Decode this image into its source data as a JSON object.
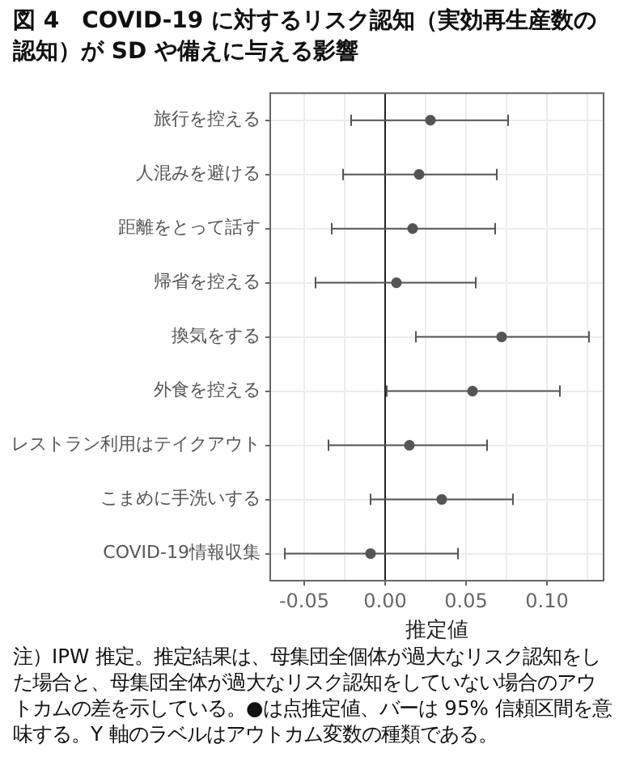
{
  "chart_data": {
    "type": "scatter",
    "title": "図 4　COVID-19 に対するリスク認知（実効再生産数の認知）が SD や備えに与える影響",
    "xlabel": "推定値",
    "categories": [
      "旅行を控える",
      "人混みを避ける",
      "距離をとって話す",
      "帰省を控える",
      "換気をする",
      "外食を控える",
      "レストラン利用はテイクアウト",
      "こまめに手洗いする",
      "COVID-19情報収集"
    ],
    "orientation": "horizontal",
    "series": [
      {
        "color": "#555555",
        "values": [
          0.028,
          0.021,
          0.017,
          0.007,
          0.072,
          0.054,
          0.015,
          0.035,
          -0.009
        ],
        "errors": [
          [
            -0.021,
            0.076
          ],
          [
            -0.026,
            0.069
          ],
          [
            -0.033,
            0.068
          ],
          [
            -0.043,
            0.056
          ],
          [
            0.019,
            0.126
          ],
          [
            0.001,
            0.108
          ],
          [
            -0.035,
            0.063
          ],
          [
            -0.009,
            0.079
          ],
          [
            -0.062,
            0.045
          ]
        ]
      }
    ],
    "xlim": [
      -0.071,
      0.135
    ],
    "xticks": [
      {
        "value": -0.05,
        "label": "-0.05"
      },
      {
        "value": -0.025,
        "label": null
      },
      {
        "value": 0,
        "label": "0.00"
      },
      {
        "value": 0.025,
        "label": null
      },
      {
        "value": 0.05,
        "label": "0.05"
      },
      {
        "value": 0.075,
        "label": null
      },
      {
        "value": 0.1,
        "label": "0.10"
      },
      {
        "value": 0.125,
        "label": null
      }
    ],
    "ref_lines": [
      {
        "axis": "x",
        "value": 0,
        "color": "#222222"
      }
    ],
    "grid": true,
    "legend": false,
    "marker": "circle",
    "annotations": [
      "注）IPW 推定。推定結果は、母集団全個体が過大なリスク認知をした場合と、母集団全体が過大なリスク認知をしていない場合のアウトカムの差を示している。●は点推定値、バーは 95% 信頼区間を意味する。Y 軸のラベルはアウトカム変数の種類である。"
    ]
  }
}
